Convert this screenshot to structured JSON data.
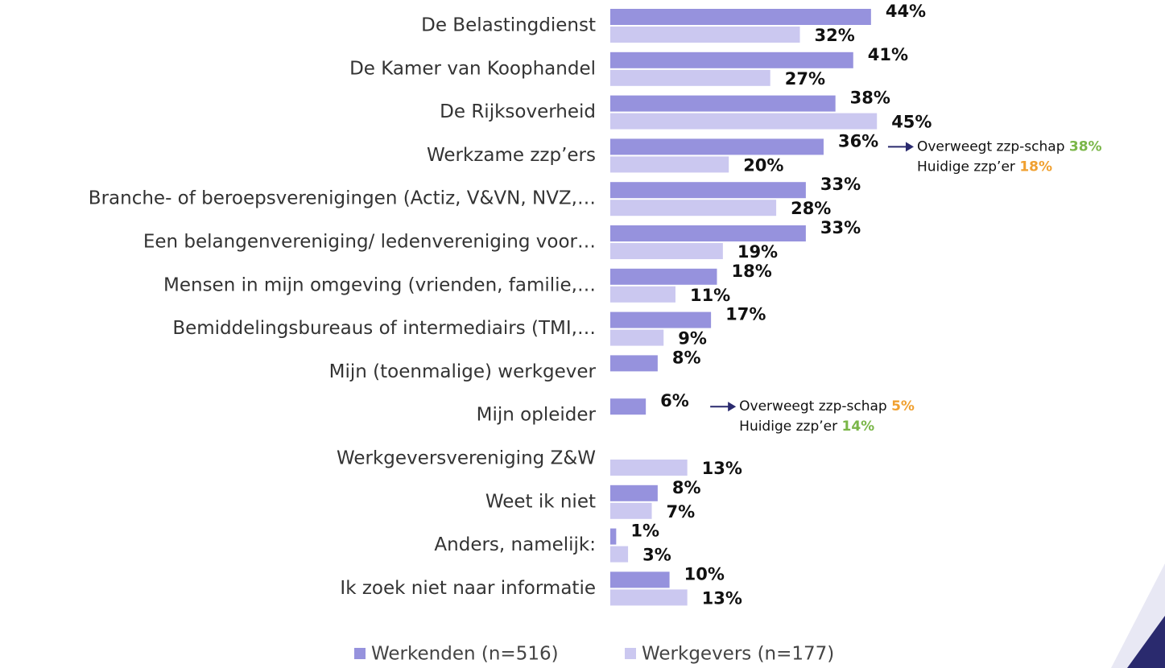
{
  "chart_data": {
    "type": "bar",
    "orientation": "horizontal",
    "categories": [
      "De Belastingdienst",
      "De Kamer van Koophandel",
      "De Rijksoverheid",
      "Werkzame zzp’ers",
      "Branche- of beroepsverenigingen (Actiz, V&VN, NVZ,…",
      "Een belangenvereniging/ ledenvereniging voor…",
      "Mensen in mijn omgeving (vrienden, familie,…",
      "Bemiddelingsbureaus of intermediairs (TMI,…",
      "Mijn (toenmalige) werkgever",
      "Mijn opleider",
      "Werkgeversvereniging Z&W",
      "Weet ik niet",
      "Anders, namelijk:",
      "Ik zoek niet naar informatie"
    ],
    "series": [
      {
        "name": "Werkenden (n=516)",
        "color": "#9692dd",
        "values": [
          44,
          41,
          38,
          36,
          33,
          33,
          18,
          17,
          8,
          6,
          null,
          8,
          1,
          10
        ],
        "value_labels": [
          "44%",
          "41%",
          "38%",
          "36%",
          "33%",
          "33%",
          "18%",
          "17%",
          "8%",
          "6%",
          null,
          "8%",
          "1%",
          "10%"
        ]
      },
      {
        "name": "Werkgevers (n=177)",
        "color": "#cbc8f0",
        "values": [
          32,
          27,
          45,
          20,
          28,
          19,
          11,
          9,
          null,
          null,
          13,
          7,
          3,
          13
        ],
        "value_labels": [
          "32%",
          "27%",
          "45%",
          "20%",
          "28%",
          "19%",
          "11%",
          "9%",
          null,
          null,
          "13%",
          "7%",
          "3%",
          "13%"
        ]
      }
    ],
    "annotations": [
      {
        "lines": [
          {
            "text": "Overweegt zzp-schap",
            "value": "38%",
            "color": "#7ab648"
          },
          {
            "text": "Huidige zzp’er",
            "value": "18%",
            "color": "#f0a030"
          }
        ]
      },
      {
        "lines": [
          {
            "text": "Overweegt zzp-schap",
            "value": "5%",
            "color": "#f0a030"
          },
          {
            "text": "Huidige zzp’er",
            "value": "14%",
            "color": "#7ab648"
          }
        ]
      }
    ],
    "legend": "bottom"
  }
}
